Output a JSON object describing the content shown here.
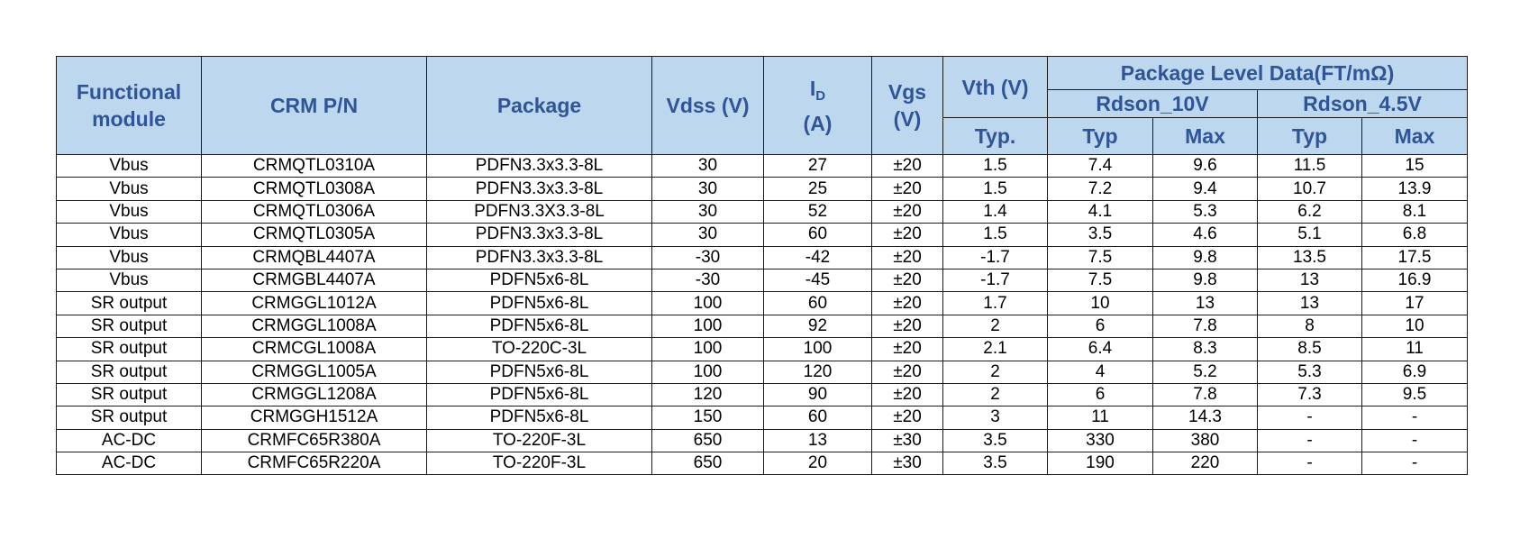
{
  "header": {
    "functional_module": "Functional module",
    "crm_pn": "CRM P/N",
    "package": "Package",
    "vdss": "Vdss (V)",
    "id_main": "I",
    "id_sub": "D",
    "id_unit": "(A)",
    "vgs": "Vgs",
    "vgs_unit": "(V)",
    "vth": "Vth (V)",
    "vth_typ": "Typ.",
    "package_level": "Package Level Data(FT/mΩ)",
    "rdson_10v": "Rdson_10V",
    "rdson_45v": "Rdson_4.5V",
    "typ": "Typ",
    "max": "Max"
  },
  "rows": [
    [
      "Vbus",
      "CRMQTL0310A",
      "PDFN3.3x3.3-8L",
      "30",
      "27",
      "±20",
      "1.5",
      "7.4",
      "9.6",
      "11.5",
      "15"
    ],
    [
      "Vbus",
      "CRMQTL0308A",
      "PDFN3.3x3.3-8L",
      "30",
      "25",
      "±20",
      "1.5",
      "7.2",
      "9.4",
      "10.7",
      "13.9"
    ],
    [
      "Vbus",
      "CRMQTL0306A",
      "PDFN3.3X3.3-8L",
      "30",
      "52",
      "±20",
      "1.4",
      "4.1",
      "5.3",
      "6.2",
      "8.1"
    ],
    [
      "Vbus",
      "CRMQTL0305A",
      "PDFN3.3x3.3-8L",
      "30",
      "60",
      "±20",
      "1.5",
      "3.5",
      "4.6",
      "5.1",
      "6.8"
    ],
    [
      "Vbus",
      "CRMQBL4407A",
      "PDFN3.3x3.3-8L",
      "-30",
      "-42",
      "±20",
      "-1.7",
      "7.5",
      "9.8",
      "13.5",
      "17.5"
    ],
    [
      "Vbus",
      "CRMGBL4407A",
      "PDFN5x6-8L",
      "-30",
      "-45",
      "±20",
      "-1.7",
      "7.5",
      "9.8",
      "13",
      "16.9"
    ],
    [
      "SR output",
      "CRMGGL1012A",
      "PDFN5x6-8L",
      "100",
      "60",
      "±20",
      "1.7",
      "10",
      "13",
      "13",
      "17"
    ],
    [
      "SR output",
      "CRMGGL1008A",
      "PDFN5x6-8L",
      "100",
      "92",
      "±20",
      "2",
      "6",
      "7.8",
      "8",
      "10"
    ],
    [
      "SR output",
      "CRMCGL1008A",
      "TO-220C-3L",
      "100",
      "100",
      "±20",
      "2.1",
      "6.4",
      "8.3",
      "8.5",
      "11"
    ],
    [
      "SR output",
      "CRMGGL1005A",
      "PDFN5x6-8L",
      "100",
      "120",
      "±20",
      "2",
      "4",
      "5.2",
      "5.3",
      "6.9"
    ],
    [
      "SR output",
      "CRMGGL1208A",
      "PDFN5x6-8L",
      "120",
      "90",
      "±20",
      "2",
      "6",
      "7.8",
      "7.3",
      "9.5"
    ],
    [
      "SR output",
      "CRMGGH1512A",
      "PDFN5x6-8L",
      "150",
      "60",
      "±20",
      "3",
      "11",
      "14.3",
      "-",
      "-"
    ],
    [
      "AC-DC",
      "CRMFC65R380A",
      "TO-220F-3L",
      "650",
      "13",
      "±30",
      "3.5",
      "330",
      "380",
      "-",
      "-"
    ],
    [
      "AC-DC",
      "CRMFC65R220A",
      "TO-220F-3L",
      "650",
      "20",
      "±30",
      "3.5",
      "190",
      "220",
      "-",
      "-"
    ]
  ]
}
